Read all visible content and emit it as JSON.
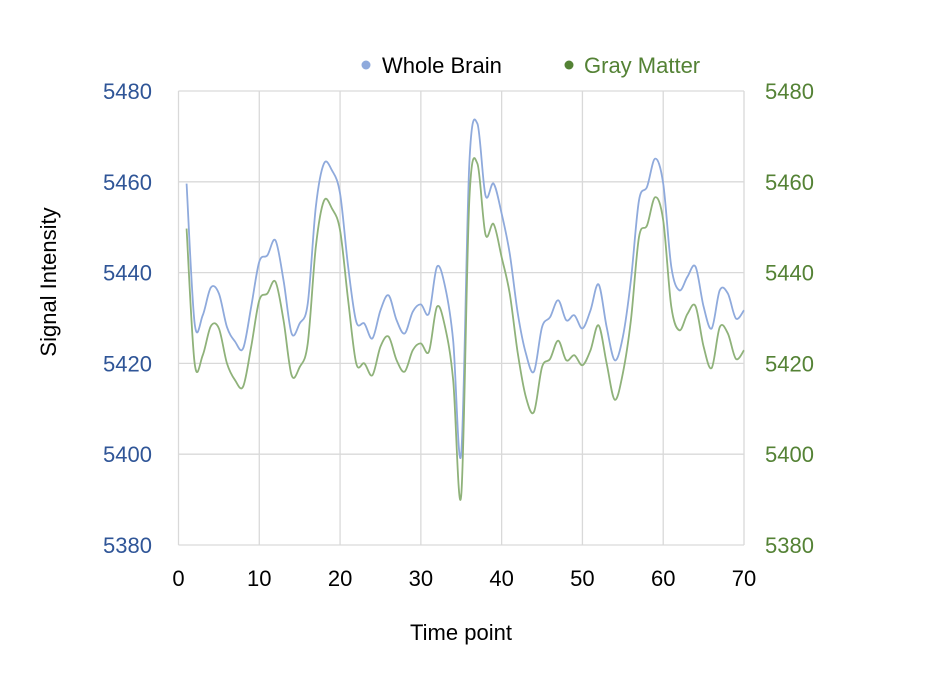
{
  "chart_data": {
    "type": "line",
    "title": "",
    "xlabel": "Time point",
    "ylabel": "Signal Intensity",
    "xlim": [
      0,
      70
    ],
    "ylim": [
      5380,
      5480
    ],
    "y2lim": [
      5380,
      5480
    ],
    "x_ticks": [
      "0",
      "10",
      "20",
      "30",
      "40",
      "50",
      "60",
      "70"
    ],
    "y_ticks": [
      "5380",
      "5400",
      "5420",
      "5440",
      "5460",
      "5480"
    ],
    "y2_ticks": [
      "5380",
      "5400",
      "5420",
      "5440",
      "5460",
      "5480"
    ],
    "grid": true,
    "legend_placement": "top",
    "colors": {
      "left_axis": "#2f5597",
      "right_axis": "#548235",
      "whole_brain": "#8faadc",
      "gray_matter": "#8fb27a",
      "gray_matter_legend": "#548235"
    },
    "x": [
      1,
      2,
      3,
      4,
      5,
      6,
      7,
      8,
      9,
      10,
      11,
      12,
      13,
      14,
      15,
      16,
      17,
      18,
      19,
      20,
      21,
      22,
      23,
      24,
      25,
      26,
      27,
      28,
      29,
      30,
      31,
      32,
      33,
      34,
      35,
      36,
      37,
      38,
      39,
      40,
      41,
      42,
      43,
      44,
      45,
      46,
      47,
      48,
      49,
      50,
      51,
      52,
      53,
      54,
      55,
      56,
      57,
      58,
      59,
      60,
      61,
      62,
      63,
      64,
      65,
      66,
      67,
      68,
      69,
      70
    ],
    "series": [
      {
        "name": "Whole Brain",
        "axis": "left",
        "values": [
          5459.6,
          5428.8,
          5430.6,
          5436.7,
          5435.4,
          5428,
          5424.8,
          5423.3,
          5432.5,
          5442.4,
          5443.8,
          5447.1,
          5438.3,
          5426.6,
          5428.8,
          5433.2,
          5454.5,
          5464,
          5462.5,
          5457.4,
          5441.3,
          5429.2,
          5428.8,
          5425.5,
          5431.7,
          5435,
          5429.5,
          5426.6,
          5431.4,
          5433,
          5431,
          5441.3,
          5436.9,
          5425,
          5400.2,
          5464,
          5472.8,
          5457,
          5459.6,
          5453,
          5444.2,
          5431,
          5422.2,
          5418.2,
          5428,
          5430.2,
          5433.9,
          5429.5,
          5430.6,
          5427.7,
          5431.7,
          5437.4,
          5428,
          5420.7,
          5425.8,
          5438.3,
          5455.9,
          5458.9,
          5465.1,
          5459.6,
          5441.3,
          5436.1,
          5439.1,
          5441.3,
          5432.5,
          5427.7,
          5436.1,
          5435.4,
          5429.9,
          5431.7
        ]
      },
      {
        "name": "Gray Matter",
        "axis": "right",
        "values": [
          5449.7,
          5420,
          5421.8,
          5428.2,
          5427.7,
          5420,
          5416.3,
          5414.9,
          5423.7,
          5433.9,
          5435.4,
          5438,
          5429.5,
          5417.4,
          5419.2,
          5424.4,
          5445.7,
          5455.8,
          5454.1,
          5449.3,
          5433.9,
          5420,
          5420,
          5417.4,
          5423.7,
          5425.9,
          5420.7,
          5418.2,
          5422.9,
          5424.4,
          5422.6,
          5432.5,
          5428,
          5416.3,
          5391,
          5456,
          5464,
          5448.4,
          5450.7,
          5443.4,
          5435.4,
          5422.2,
          5412.6,
          5409.3,
          5419.2,
          5421,
          5425,
          5420.7,
          5421.8,
          5419.6,
          5422.9,
          5428.4,
          5420,
          5412,
          5417.8,
          5429.5,
          5447.8,
          5450.4,
          5456.6,
          5451.5,
          5432.5,
          5427.3,
          5430.9,
          5432.6,
          5423.7,
          5419,
          5428,
          5426.6,
          5421,
          5422.9
        ]
      }
    ]
  }
}
